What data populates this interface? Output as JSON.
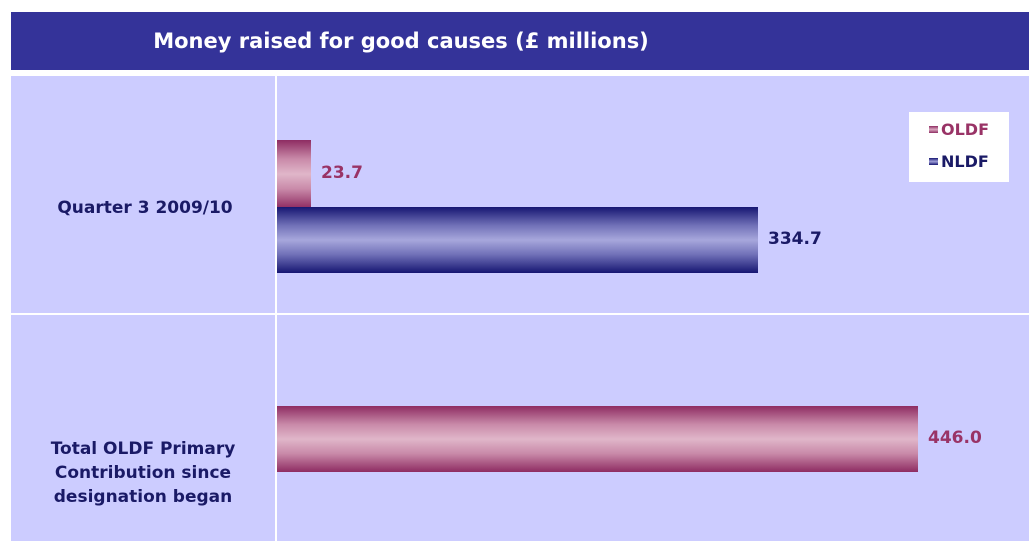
{
  "title": "Money raised for good causes (£ millions)",
  "colors": {
    "header_bg": "#343399",
    "plot_bg": "#ccccff",
    "oldf": "#993366",
    "nldf": "#1a1a66"
  },
  "chart_data": {
    "type": "bar",
    "orientation": "horizontal",
    "title": "Money raised for good causes (£ millions)",
    "categories": [
      "Quarter 3 2009/10",
      "Total OLDF Primary Contribution since designation began"
    ],
    "category_lines": [
      [
        "Quarter 3 2009/10"
      ],
      [
        "Total OLDF Primary",
        "Contribution since",
        "designation began"
      ]
    ],
    "series": [
      {
        "name": "OLDF",
        "values": [
          23.7,
          446.0
        ],
        "labels": [
          "23.7",
          "446.0"
        ]
      },
      {
        "name": "NLDF",
        "values": [
          334.7,
          null
        ],
        "labels": [
          "334.7",
          ""
        ]
      }
    ],
    "xlim": [
      0,
      446
    ],
    "legend_position": "top-right",
    "grid": false
  }
}
